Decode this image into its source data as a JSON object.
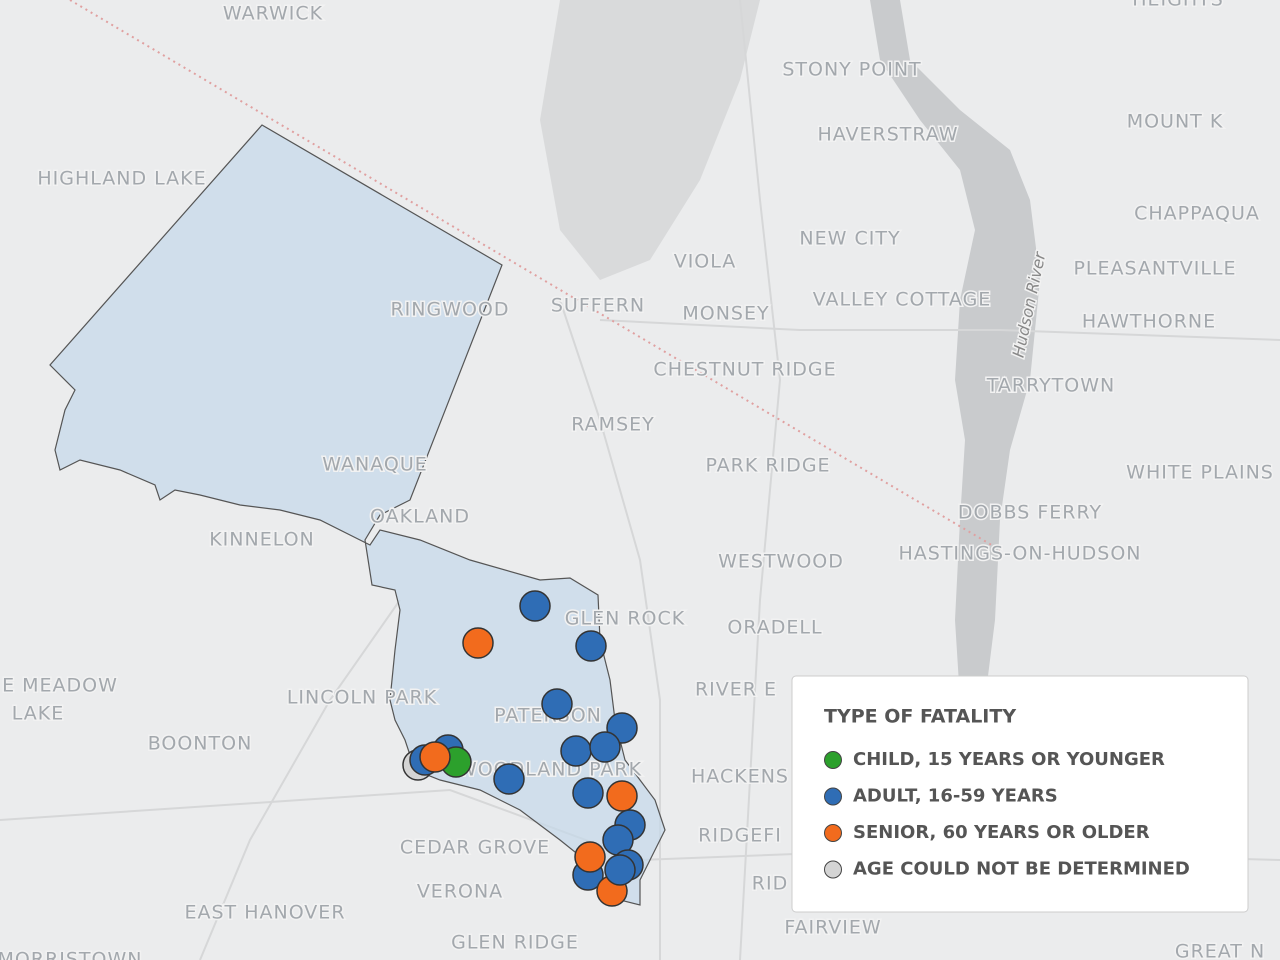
{
  "map": {
    "places": [
      "WARWICK",
      "HEIGHTS",
      "STONY POINT",
      "HAVERSTRAW",
      "MOUNT K",
      "HIGHLAND LAKE",
      "CHAPPAQUA",
      "NEW CITY",
      "VIOLA",
      "PLEASANTVILLE",
      "RINGWOOD",
      "SUFFERN",
      "MONSEY",
      "VALLEY COTTAGE",
      "HAWTHORNE",
      "CHESTNUT RIDGE",
      "TARRYTOWN",
      "RAMSEY",
      "WANAQUE",
      "PARK RIDGE",
      "WHITE PLAINS",
      "OAKLAND",
      "DOBBS FERRY",
      "KINNELON",
      "HASTINGS-ON-HUDSON",
      "WESTWOOD",
      "GLEN ROCK",
      "ORADELL",
      "E MEADOW",
      "LAKE",
      "LINCOLN PARK",
      "RIVER E",
      "PATERSON",
      "BOONTON",
      "WOODLAND PARK",
      "HACKENS",
      "RIDGEFI",
      "CEDAR GROVE",
      "RID",
      "VERONA",
      "EAST HANOVER",
      "FAIRVIEW",
      "GLEN RIDGE",
      "MORRISTOWN",
      "GREAT N"
    ],
    "river": "Hudson River"
  },
  "legend": {
    "title": "TYPE OF FATALITY",
    "items": [
      {
        "name": "CHILD, 15 YEARS OR YOUNGER",
        "color": "#2ca02c"
      },
      {
        "name": "ADULT, 16-59 YEARS",
        "color": "#2f6db5"
      },
      {
        "name": "SENIOR, 60 YEARS OR OLDER",
        "color": "#f26b1d"
      },
      {
        "name": "AGE COULD NOT BE DETERMINED",
        "color": "#d4d4d4"
      }
    ]
  }
}
